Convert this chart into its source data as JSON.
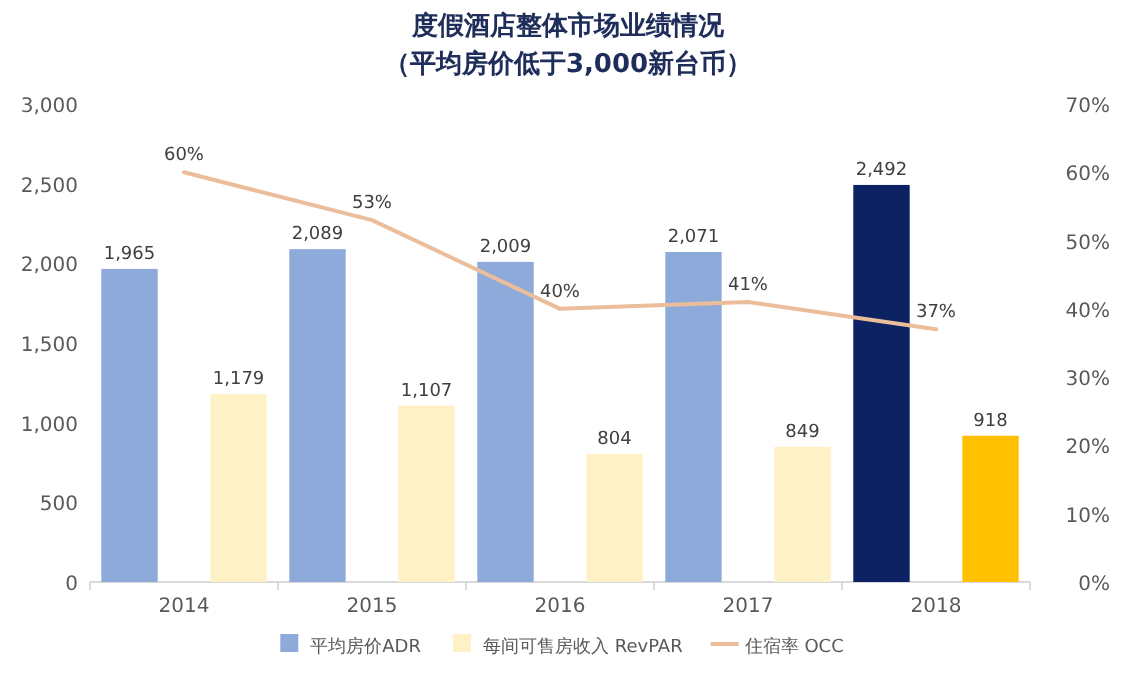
{
  "chart_data": {
    "type": "bar",
    "title": "度假酒店整体市场业绩情况",
    "subtitle": "（平均房价低于3,000新台币）",
    "categories": [
      "2014",
      "2015",
      "2016",
      "2017",
      "2018"
    ],
    "series": [
      {
        "name": "平均房价ADR",
        "colors": [
          "#8eaadb",
          "#8eaadb",
          "#8eaadb",
          "#8eaadb",
          "#0d2262"
        ],
        "values": [
          1965,
          2089,
          2009,
          2071,
          2492
        ],
        "value_labels": [
          "1,965",
          "2,089",
          "2,009",
          "2,071",
          "2,492"
        ]
      },
      {
        "name": "每间可售房收入 RevPAR",
        "colors": [
          "#fff1c6",
          "#fff1c6",
          "#fff1c6",
          "#fff1c6",
          "#ffc000"
        ],
        "values": [
          1179,
          1107,
          804,
          849,
          918
        ],
        "value_labels": [
          "1,179",
          "1,107",
          "804",
          "849",
          "918"
        ]
      },
      {
        "name": "住宿率 OCC",
        "type": "line",
        "axis": "y2",
        "color": "#ebbd9b",
        "values": [
          60,
          53,
          40,
          41,
          37
        ],
        "value_labels": [
          "60%",
          "53%",
          "40%",
          "41%",
          "37%"
        ]
      }
    ],
    "ylim": [
      0,
      3000
    ],
    "yticks": [
      0,
      500,
      {
        "value": 1000,
        "label": "1,000"
      },
      {
        "value": 1500,
        "label": "1,500"
      },
      {
        "value": 2000,
        "label": "2,000"
      },
      {
        "value": 2500,
        "label": "2,500"
      },
      {
        "value": 3000,
        "label": "3,000"
      }
    ],
    "y2lim": [
      0,
      70
    ],
    "y2ticks": [
      {
        "value": 0,
        "label": "0%"
      },
      {
        "value": 10,
        "label": "10%"
      },
      {
        "value": 20,
        "label": "20%"
      },
      {
        "value": 30,
        "label": "30%"
      },
      {
        "value": 40,
        "label": "40%"
      },
      {
        "value": 50,
        "label": "50%"
      },
      {
        "value": 60,
        "label": "60%"
      },
      {
        "value": 70,
        "label": "70%"
      }
    ],
    "legend": "bottom",
    "grid": false,
    "marker": "none"
  }
}
